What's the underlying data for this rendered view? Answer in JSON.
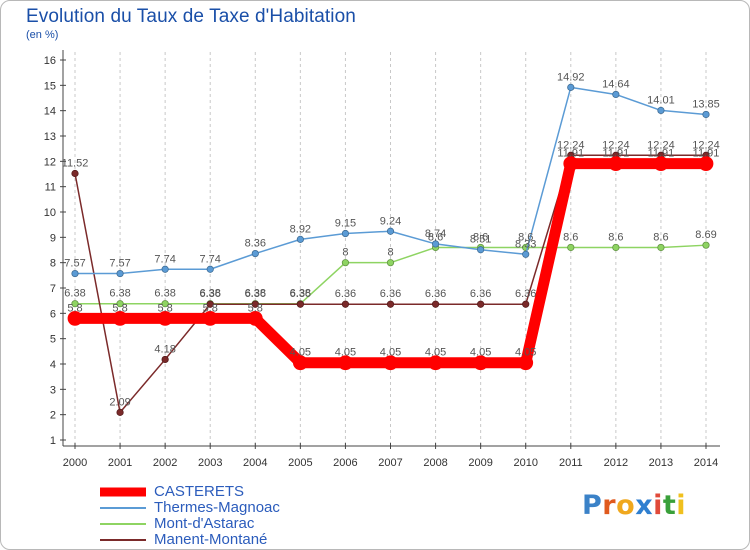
{
  "title": "Evolution du Taux de Taxe d'Habitation",
  "unit": "(en %)",
  "logo": {
    "letters": [
      {
        "ch": "P",
        "color": "#3b82c8"
      },
      {
        "ch": "r",
        "color": "#e05a1e"
      },
      {
        "ch": "o",
        "color": "#f0a81e"
      },
      {
        "ch": "x",
        "color": "#2f7fd0"
      },
      {
        "ch": "i",
        "color": "#e04a3a"
      },
      {
        "ch": "t",
        "color": "#3aa03a"
      },
      {
        "ch": "i",
        "color": "#f0c01e"
      }
    ]
  },
  "chart_data": {
    "type": "line",
    "title": "Evolution du Taux de Taxe d'Habitation",
    "ylabel": "(en %)",
    "x": [
      2000,
      2001,
      2002,
      2003,
      2004,
      2005,
      2006,
      2007,
      2008,
      2009,
      2010,
      2011,
      2012,
      2013,
      2014
    ],
    "ylim": [
      1,
      16
    ],
    "yticks": [
      1,
      2,
      3,
      4,
      5,
      6,
      7,
      8,
      9,
      10,
      11,
      12,
      13,
      14,
      15,
      16
    ],
    "grid": "vertical dashed",
    "legend": "bottom-left",
    "series": [
      {
        "name": "CASTERETS",
        "color": "#ff0000",
        "values": [
          5.8,
          5.8,
          5.8,
          5.8,
          5.8,
          4.05,
          4.05,
          4.05,
          4.05,
          4.05,
          4.05,
          11.91,
          11.91,
          11.91,
          11.91
        ],
        "labels": [
          "5.8",
          "5.8",
          "5.8",
          "5.8",
          "5.8",
          "4.05",
          "4.05",
          "4.05",
          "4.05",
          "4.05",
          "4.05",
          "11.91",
          "11.91",
          "11.91",
          "11.91"
        ]
      },
      {
        "name": "Thermes-Magnoac",
        "color": "#5b9bd5",
        "values": [
          7.57,
          7.57,
          7.74,
          7.74,
          8.36,
          8.92,
          9.15,
          9.24,
          8.74,
          8.51,
          8.33,
          14.92,
          14.64,
          14.01,
          13.85
        ],
        "labels": [
          "7.57",
          "7.57",
          "7.74",
          "7.74",
          "8.36",
          "8.92",
          "9.15",
          "9.24",
          "8.74",
          "8.51",
          "8.33",
          "14.92",
          "14.64",
          "14.01",
          "13.85"
        ]
      },
      {
        "name": "Mont-d'Astarac",
        "color": "#8ed462",
        "values": [
          6.38,
          6.38,
          6.38,
          6.38,
          6.38,
          6.38,
          8,
          8,
          8.6,
          8.6,
          8.6,
          8.6,
          8.6,
          8.6,
          8.69
        ],
        "labels": [
          "6.38",
          "6.38",
          "6.38",
          "6.38",
          "6.38",
          "6.38",
          "8",
          "8",
          "8.6",
          "8.6",
          "8.6",
          "8.6",
          "8.6",
          "8.6",
          "8.69"
        ]
      },
      {
        "name": "Manent-Montané",
        "color": "#7b2a2a",
        "values": [
          11.52,
          2.09,
          4.18,
          6.36,
          6.36,
          6.36,
          6.36,
          6.36,
          6.36,
          6.36,
          6.36,
          12.24,
          12.24,
          12.24,
          12.24
        ],
        "labels": [
          "11.52",
          "2.09",
          "4.18",
          "6.36",
          "6.36",
          "6.36",
          "6.36",
          "6.36",
          "6.36",
          "6.36",
          "6.36",
          "12.24",
          "12.24",
          "12.24",
          "12.24"
        ]
      }
    ]
  }
}
